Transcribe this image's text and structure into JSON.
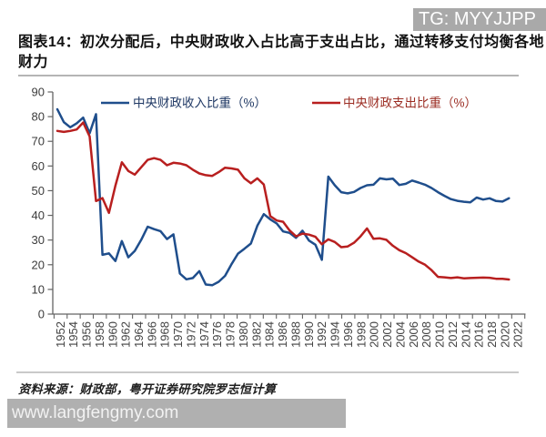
{
  "badge": {
    "text": "TG: MYYJJPP",
    "bg": "#a9a9a9",
    "fg": "#ffffff"
  },
  "title": "图表14：初次分配后，中央财政收入占比高于支出占比，通过转移支付均衡各地财力",
  "title_lines": [
    "图表14：初次分配后，中央财政收入占比高于支出占比，通过转移支付均衡各地",
    "财力"
  ],
  "source_note": "资料来源：财政部，粤开证券研究院罗志恒计算",
  "watermark": {
    "text": "www.langfengmy.com",
    "bg": "#b0b0b0",
    "fg": "#f2f2f2"
  },
  "chart_data": {
    "type": "line",
    "x": [
      1952,
      1953,
      1954,
      1955,
      1956,
      1957,
      1958,
      1959,
      1960,
      1961,
      1962,
      1963,
      1964,
      1965,
      1966,
      1967,
      1968,
      1969,
      1970,
      1971,
      1972,
      1973,
      1974,
      1975,
      1976,
      1977,
      1978,
      1979,
      1980,
      1981,
      1982,
      1983,
      1984,
      1985,
      1986,
      1987,
      1988,
      1989,
      1990,
      1991,
      1992,
      1993,
      1994,
      1995,
      1996,
      1997,
      1998,
      1999,
      2000,
      2001,
      2002,
      2003,
      2004,
      2005,
      2006,
      2007,
      2008,
      2009,
      2010,
      2011,
      2012,
      2013,
      2014,
      2015,
      2016,
      2017,
      2018,
      2019,
      2020,
      2021,
      2022
    ],
    "series": [
      {
        "name": "中央财政收入比重（%）",
        "color": "#1f4e8c",
        "values": [
          83.0,
          77.8,
          75.7,
          77.3,
          79.6,
          73.3,
          81.0,
          24.0,
          24.6,
          21.5,
          29.6,
          23.0,
          25.6,
          30.1,
          35.4,
          34.4,
          33.6,
          30.4,
          32.3,
          16.4,
          14.1,
          14.6,
          17.4,
          12.0,
          11.7,
          13.1,
          15.5,
          20.2,
          24.5,
          26.5,
          28.6,
          35.8,
          40.5,
          38.4,
          36.7,
          33.5,
          32.9,
          30.9,
          33.8,
          29.8,
          28.1,
          22.0,
          55.7,
          52.2,
          49.4,
          48.9,
          49.5,
          51.1,
          52.2,
          52.4,
          55.0,
          54.6,
          54.9,
          52.3,
          52.8,
          54.1,
          53.3,
          52.4,
          51.1,
          49.4,
          47.9,
          46.6,
          45.9,
          45.5,
          45.3,
          47.2,
          46.4,
          46.9,
          45.8,
          45.6,
          46.9
        ]
      },
      {
        "name": "中央财政支出比重（%）",
        "color": "#b81f1f",
        "values": [
          74.2,
          73.8,
          74.2,
          74.8,
          77.6,
          72.0,
          45.8,
          47.0,
          41.0,
          52.0,
          61.5,
          58.0,
          56.5,
          59.5,
          62.5,
          63.2,
          62.5,
          60.3,
          61.3,
          61.0,
          60.3,
          58.5,
          57.0,
          56.3,
          56.0,
          57.5,
          59.3,
          59.0,
          58.5,
          55.0,
          53.0,
          55.0,
          52.5,
          39.7,
          37.9,
          37.4,
          33.9,
          31.5,
          32.6,
          32.2,
          31.3,
          28.3,
          30.3,
          29.2,
          27.1,
          27.4,
          28.9,
          31.5,
          34.7,
          30.5,
          30.7,
          30.1,
          27.7,
          25.9,
          24.7,
          23.0,
          21.3,
          20.0,
          17.8,
          15.1,
          14.9,
          14.6,
          14.9,
          14.5,
          14.6,
          14.7,
          14.8,
          14.7,
          14.3,
          14.3,
          14.0
        ]
      }
    ],
    "ylim": [
      0,
      90
    ],
    "ytick_step": 10,
    "xtick_step": 2,
    "legend_position": "top",
    "grid": false
  }
}
